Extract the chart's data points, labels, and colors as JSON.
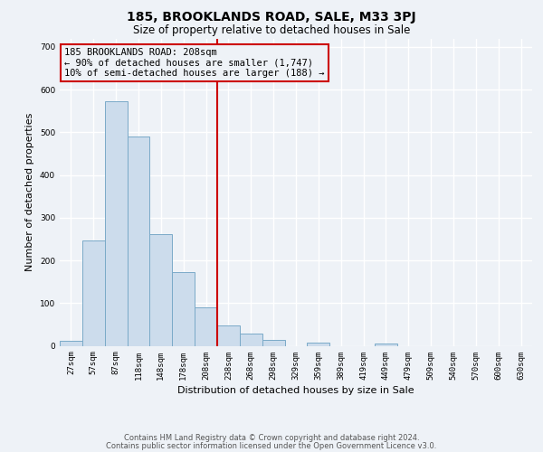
{
  "title": "185, BROOKLANDS ROAD, SALE, M33 3PJ",
  "subtitle": "Size of property relative to detached houses in Sale",
  "xlabel": "Distribution of detached houses by size in Sale",
  "ylabel": "Number of detached properties",
  "bar_color": "#ccdcec",
  "bar_edge_color": "#7aaac8",
  "annotation_box_color": "#cc0000",
  "vline_color": "#cc0000",
  "bin_labels": [
    "27sqm",
    "57sqm",
    "87sqm",
    "118sqm",
    "148sqm",
    "178sqm",
    "208sqm",
    "238sqm",
    "268sqm",
    "298sqm",
    "329sqm",
    "359sqm",
    "389sqm",
    "419sqm",
    "449sqm",
    "479sqm",
    "509sqm",
    "540sqm",
    "570sqm",
    "600sqm",
    "630sqm"
  ],
  "bar_heights": [
    12,
    247,
    573,
    491,
    261,
    172,
    90,
    48,
    28,
    14,
    0,
    7,
    0,
    0,
    5,
    0,
    0,
    0,
    0,
    0,
    0
  ],
  "vline_x": 6.5,
  "ylim": [
    0,
    720
  ],
  "yticks": [
    0,
    100,
    200,
    300,
    400,
    500,
    600,
    700
  ],
  "annotation_text": "185 BROOKLANDS ROAD: 208sqm\n← 90% of detached houses are smaller (1,747)\n10% of semi-detached houses are larger (188) →",
  "footnote1": "Contains HM Land Registry data © Crown copyright and database right 2024.",
  "footnote2": "Contains public sector information licensed under the Open Government Licence v3.0.",
  "bg_color": "#eef2f7",
  "grid_color": "#ffffff",
  "title_fontsize": 10,
  "subtitle_fontsize": 8.5,
  "label_fontsize": 8,
  "tick_fontsize": 6.5,
  "annotation_fontsize": 7.5,
  "footnote_fontsize": 6
}
